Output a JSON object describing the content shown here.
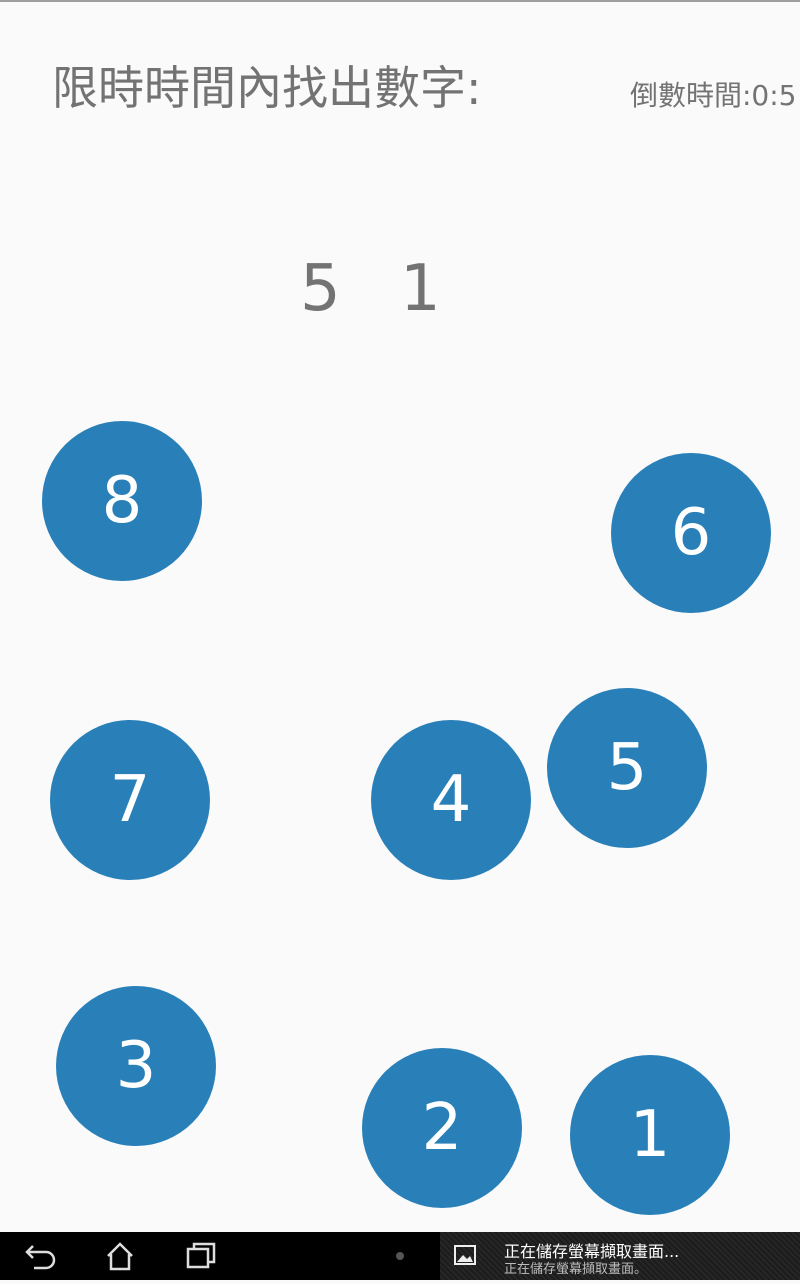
{
  "header": {
    "prompt": "限時時間內找出數字:",
    "timer": "倒數時間:0:5"
  },
  "targets": [
    "5",
    "1"
  ],
  "balls": [
    {
      "label": "8"
    },
    {
      "label": "6"
    },
    {
      "label": "7"
    },
    {
      "label": "4"
    },
    {
      "label": "5"
    },
    {
      "label": "3"
    },
    {
      "label": "2"
    },
    {
      "label": "1"
    }
  ],
  "colors": {
    "ball": "#2980b9",
    "text": "#737373",
    "background": "#fafafa"
  },
  "navbar": {
    "back_icon": "back-arrow-icon",
    "home_icon": "home-icon",
    "recents_icon": "recent-apps-icon"
  },
  "notification": {
    "icon": "image-icon",
    "title": "正在儲存螢幕擷取畫面...",
    "subtitle": "正在儲存螢幕擷取畫面。"
  }
}
